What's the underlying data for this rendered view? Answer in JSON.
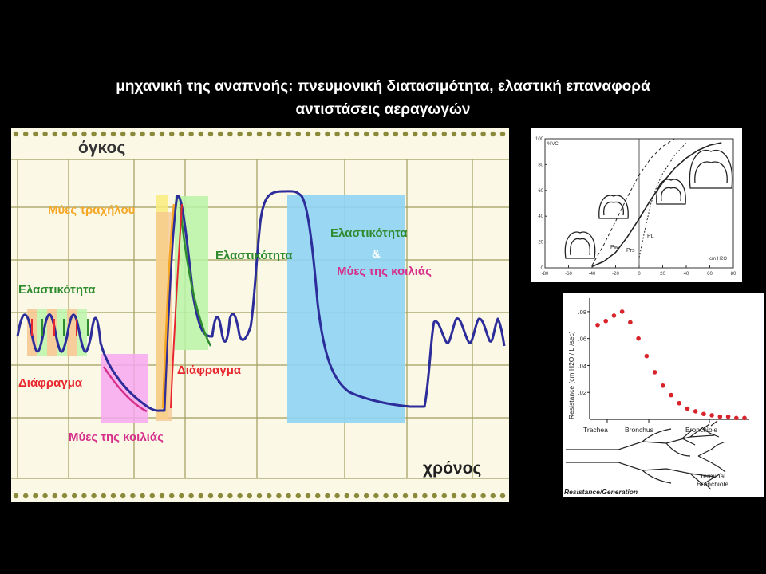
{
  "slide": {
    "title_line1": "μηχανική της αναπνοής: πνευμονική διατασιμότητα, ελαστική επαναφορά",
    "title_line2": "αντιστάσεις αεραγωγών"
  },
  "main_diagram": {
    "y_axis_label": "όγκος",
    "x_axis_label": "χρόνος",
    "labels": {
      "neck_muscles": "Μύες τραχήλου",
      "elasticity_left": "Ελαστικότητα",
      "diaphragm_left": "Διάφραγμα",
      "abdominal_muscles_left": "Μύες της κοιλιάς",
      "elasticity_middle": "Ελαστικότητα",
      "diaphragm_middle": "Διάφραγμα",
      "elasticity_right": "Ελαστικότητα",
      "ampersand": "&",
      "abdominal_muscles_right": "Μύες της κοιλιάς"
    },
    "colors": {
      "orange": "#f5a623",
      "green": "#2e8b2e",
      "red": "#e8262d",
      "magenta": "#d62f8a",
      "trace": "#2c2c9a",
      "highlight_blue": "#8fd3f4",
      "highlight_green": "#b9f5a7",
      "highlight_pink": "#f7a8f0",
      "highlight_yellow": "#f8ec7a",
      "highlight_orange": "#f7c58e",
      "grid_olive": "#8a8a3a"
    }
  },
  "pv_chart": {
    "y_unit": "%VC",
    "x_unit": "cm H2O",
    "y_ticks": [
      "100",
      "80",
      "60",
      "40",
      "20",
      "0"
    ],
    "x_ticks": [
      "-80",
      "-60",
      "-40",
      "-20",
      "0",
      "20",
      "40",
      "60",
      "80"
    ],
    "curve_labels": {
      "pw": "Pw",
      "prs": "Prs",
      "pl": "PL"
    }
  },
  "resistance_chart": {
    "y_label": "Resistance (cm H2O / L /sec)",
    "y_ticks": [
      ".08",
      ".06",
      ".04",
      ".02"
    ],
    "x_labels": [
      "Trachea",
      "Bronchus",
      "Bronchiole"
    ],
    "terminal_label_1": "Terminal",
    "terminal_label_2": "Bronchiole",
    "caption": "Resistance/Generation"
  },
  "chart_data": [
    {
      "type": "line",
      "title": "",
      "y_ticks": [
        "100",
        "80",
        "60",
        "40",
        "20",
        "0"
      ],
      "x_ticks": [
        "-80",
        "-60",
        "-40",
        "-20",
        "0",
        "20",
        "40",
        "60",
        "80"
      ],
      "xlim": [
        -80,
        80
      ],
      "ylim": [
        0,
        100
      ],
      "series": [
        {
          "name": "Prs",
          "x": [
            -40,
            -30,
            -20,
            -10,
            0,
            10,
            20,
            30,
            40,
            50,
            60,
            70
          ],
          "y": [
            1,
            5,
            12,
            24,
            38,
            53,
            66,
            77,
            85,
            91,
            95,
            97
          ]
        },
        {
          "name": "Pw",
          "x": [
            -40,
            -30,
            -20,
            -10,
            0,
            10,
            20,
            30
          ],
          "y": [
            2,
            18,
            36,
            55,
            72,
            85,
            94,
            100
          ]
        },
        {
          "name": "PL",
          "x": [
            0,
            5,
            10,
            15,
            20,
            30,
            40
          ],
          "y": [
            8,
            30,
            50,
            63,
            73,
            87,
            97
          ]
        }
      ]
    },
    {
      "type": "scatter",
      "title": "",
      "ylabel": "Resistance (cm H2O / L /sec)",
      "y_ticks": [
        ".08",
        ".06",
        ".04",
        ".02"
      ],
      "ylim": [
        0,
        0.09
      ],
      "x": [
        0,
        1,
        2,
        3,
        4,
        5,
        6,
        7,
        8,
        9,
        10,
        11,
        12,
        13,
        14,
        15,
        16,
        17,
        18
      ],
      "y": [
        0.07,
        0.073,
        0.077,
        0.08,
        0.072,
        0.06,
        0.047,
        0.035,
        0.025,
        0.018,
        0.012,
        0.008,
        0.006,
        0.004,
        0.003,
        0.002,
        0.002,
        0.001,
        0.001
      ]
    }
  ]
}
